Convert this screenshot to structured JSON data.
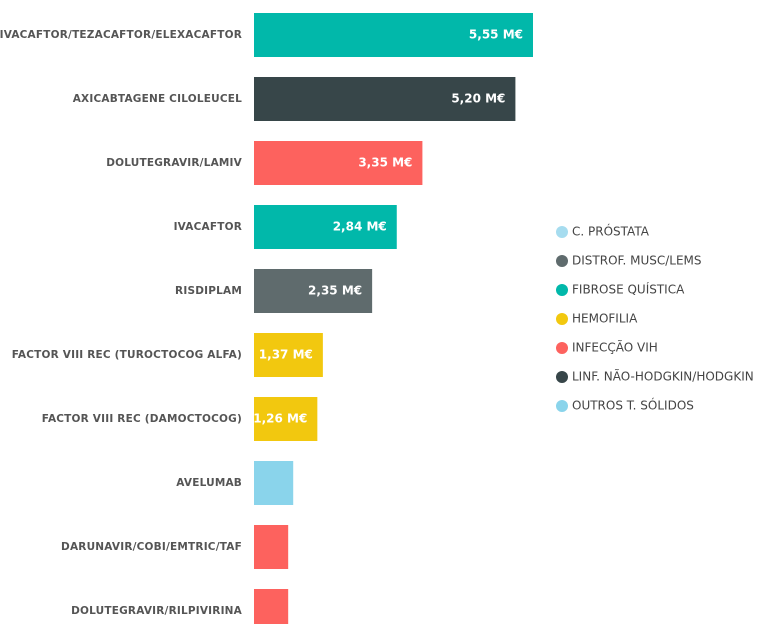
{
  "chart_data": {
    "type": "bar",
    "orientation": "horizontal",
    "categories": [
      "IVACAFTOR/TEZACAFTOR/ELEXACAFTOR",
      "AXICABTAGENE CILOLEUCEL",
      "DOLUTEGRAVIR/LAMIV",
      "IVACAFTOR",
      "RISDIPLAM",
      "FACTOR VIII REC (TUROCTOCOG ALFA)",
      "FACTOR VIII REC (DAMOCTOCOG)",
      "AVELUMAB",
      "DARUNAVIR/COBI/EMTRIC/TAF",
      "DOLUTEGRAVIR/RILPIVIRINA"
    ],
    "values": [
      5.55,
      5.2,
      3.35,
      2.84,
      2.35,
      1.37,
      1.26,
      0.78,
      0.68,
      0.68
    ],
    "value_labels": [
      "5,55 M€",
      "5,20 M€",
      "3,35 M€",
      "2,84 M€",
      "2,35 M€",
      "1,37 M€",
      "1,26 M€",
      null,
      null,
      null
    ],
    "colors": [
      "#01b8aa",
      "#374649",
      "#fd625e",
      "#01b8aa",
      "#5f6b6d",
      "#f2c80f",
      "#f2c80f",
      "#8ad4eb",
      "#fd625e",
      "#fd625e"
    ],
    "legend": [
      {
        "name": "C. PRÓSTATA",
        "color": "#a6dcef"
      },
      {
        "name": "DISTROF. MUSC/LEMS",
        "color": "#5f6b6d"
      },
      {
        "name": "FIBROSE QUÍSTICA",
        "color": "#01b8aa"
      },
      {
        "name": "HEMOFILIA",
        "color": "#f2c80f"
      },
      {
        "name": "INFECÇÃO VIH",
        "color": "#fd625e"
      },
      {
        "name": "LINF. NÃO-HODGKIN/HODGKIN",
        "color": "#374649"
      },
      {
        "name": "OUTROS T. SÓLIDOS",
        "color": "#8ad4eb"
      }
    ]
  }
}
